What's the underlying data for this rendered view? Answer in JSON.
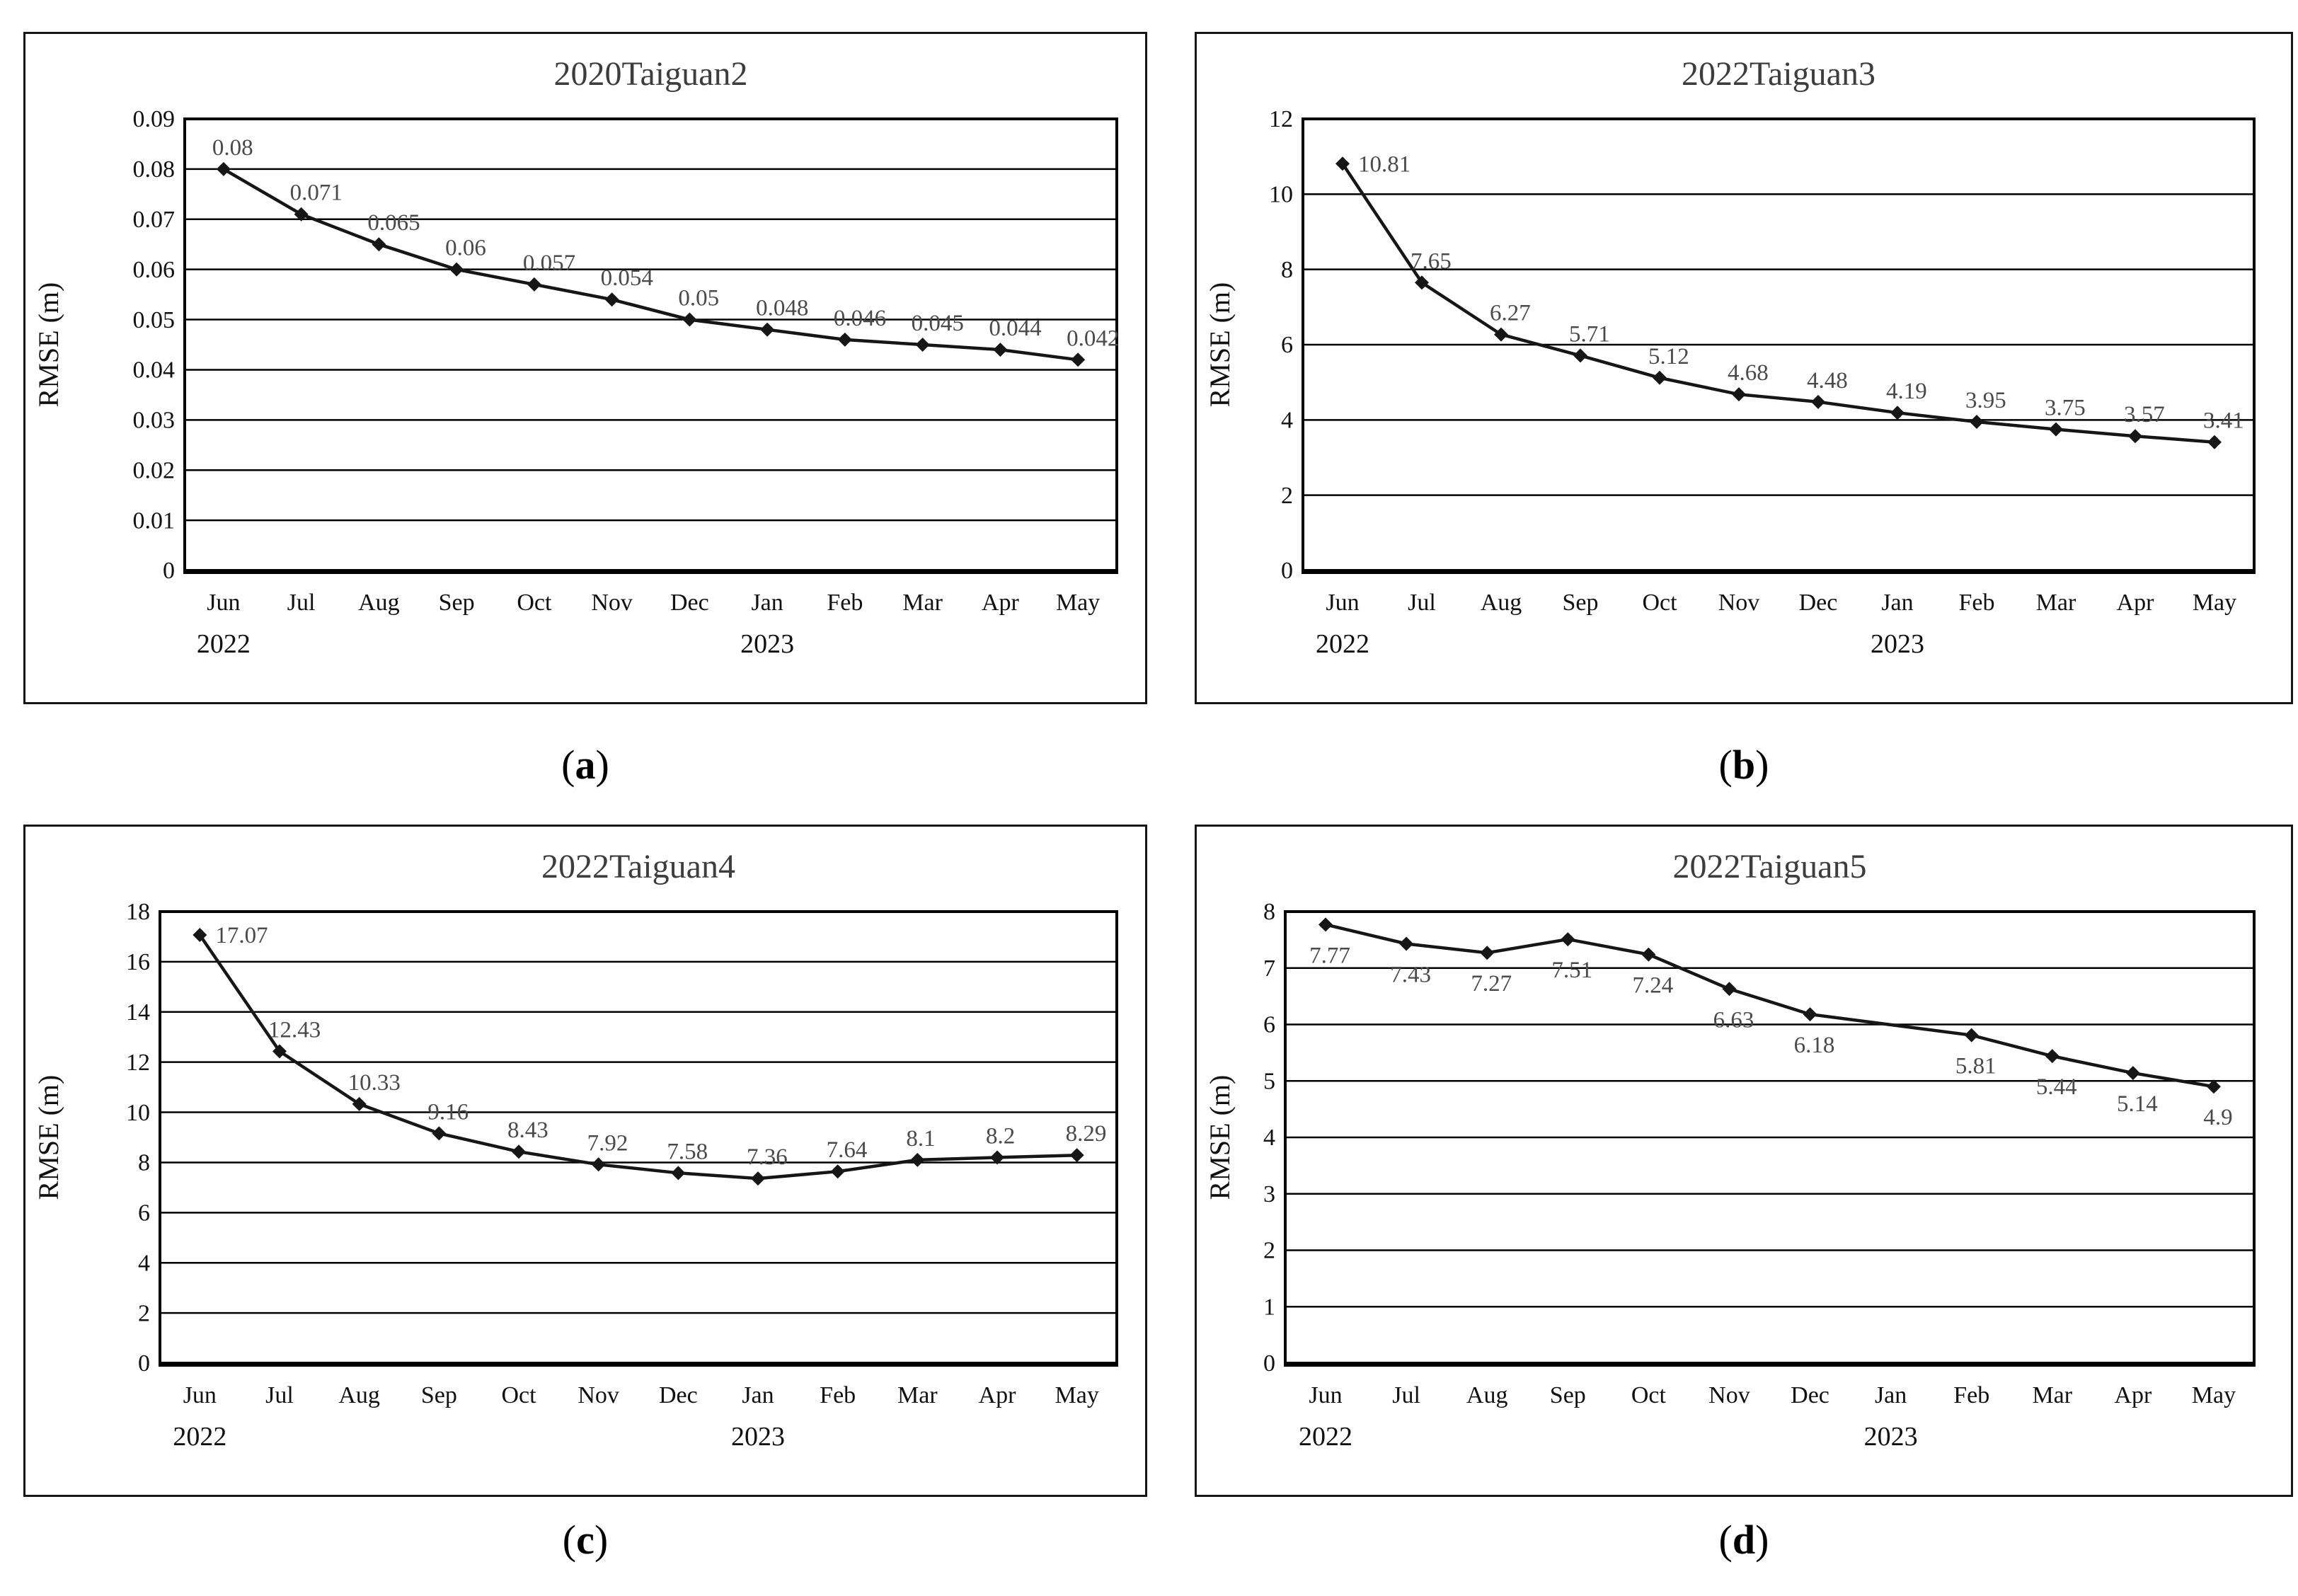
{
  "page": {
    "background": "#ffffff",
    "captions": [
      {
        "pre": "(",
        "label": "a",
        "post": ")"
      },
      {
        "pre": "(",
        "label": "b",
        "post": ")"
      },
      {
        "pre": "(",
        "label": "c",
        "post": ")"
      },
      {
        "pre": "(",
        "label": "d",
        "post": ")"
      }
    ]
  },
  "chart_data": [
    {
      "type": "line",
      "title": "2020Taiguan2",
      "xlabel": "",
      "ylabel": "RMSE (m)",
      "categories": [
        "Jun",
        "Jul",
        "Aug",
        "Sep",
        "Oct",
        "Nov",
        "Dec",
        "Jan",
        "Feb",
        "Mar",
        "Apr",
        "May"
      ],
      "x_year_labels": [
        {
          "text": "2022",
          "index": 0
        },
        {
          "text": "2023",
          "index": 7
        }
      ],
      "values": [
        0.08,
        0.071,
        0.065,
        0.06,
        0.057,
        0.054,
        0.05,
        0.048,
        0.046,
        0.045,
        0.044,
        0.042
      ],
      "point_labels": [
        "0.08",
        "0.071",
        "0.065",
        "0.06",
        "0.057",
        "0.054",
        "0.05",
        "0.048",
        "0.046",
        "0.045",
        "0.044",
        "0.042"
      ],
      "ylim": [
        0,
        0.09
      ],
      "ytick_step": 0.01,
      "grid": "horizontal",
      "legend": "none",
      "marker": "diamond",
      "line_color": "#161616",
      "title_color": "#3d3d3d",
      "label_color": "#4a4a4a",
      "label_position": "above",
      "first_label_position": "above"
    },
    {
      "type": "line",
      "title": "2022Taiguan3",
      "xlabel": "",
      "ylabel": "RMSE (m)",
      "categories": [
        "Jun",
        "Jul",
        "Aug",
        "Sep",
        "Oct",
        "Nov",
        "Dec",
        "Jan",
        "Feb",
        "Mar",
        "Apr",
        "May"
      ],
      "x_year_labels": [
        {
          "text": "2022",
          "index": 0
        },
        {
          "text": "2023",
          "index": 7
        }
      ],
      "values": [
        10.81,
        7.65,
        6.27,
        5.71,
        5.12,
        4.68,
        4.48,
        4.19,
        3.95,
        3.75,
        3.57,
        3.41
      ],
      "point_labels": [
        "10.81",
        "7.65",
        "6.27",
        "5.71",
        "5.12",
        "4.68",
        "4.48",
        "4.19",
        "3.95",
        "3.75",
        "3.57",
        "3.41"
      ],
      "ylim": [
        0,
        12
      ],
      "ytick_step": 2,
      "grid": "horizontal",
      "legend": "none",
      "marker": "diamond",
      "line_color": "#161616",
      "title_color": "#3d3d3d",
      "label_color": "#4a4a4a",
      "label_position": "above",
      "first_label_position": "right"
    },
    {
      "type": "line",
      "title": "2022Taiguan4",
      "xlabel": "",
      "ylabel": "RMSE (m)",
      "categories": [
        "Jun",
        "Jul",
        "Aug",
        "Sep",
        "Oct",
        "Nov",
        "Dec",
        "Jan",
        "Feb",
        "Mar",
        "Apr",
        "May"
      ],
      "x_year_labels": [
        {
          "text": "2022",
          "index": 0
        },
        {
          "text": "2023",
          "index": 7
        }
      ],
      "values": [
        17.07,
        12.43,
        10.33,
        9.16,
        8.43,
        7.92,
        7.58,
        7.36,
        7.64,
        8.1,
        8.2,
        8.29
      ],
      "point_labels": [
        "17.07",
        "12.43",
        "10.33",
        "9.16",
        "8.43",
        "7.92",
        "7.58",
        "7.36",
        "7.64",
        "8.1",
        "8.2",
        "8.29"
      ],
      "ylim": [
        0,
        18
      ],
      "ytick_step": 2,
      "grid": "horizontal",
      "legend": "none",
      "marker": "diamond",
      "line_color": "#161616",
      "title_color": "#3d3d3d",
      "label_color": "#4a4a4a",
      "label_position": "above",
      "first_label_position": "right"
    },
    {
      "type": "line",
      "title": "2022Taiguan5",
      "xlabel": "",
      "ylabel": "RMSE (m)",
      "categories": [
        "Jun",
        "Jul",
        "Aug",
        "Sep",
        "Oct",
        "Nov",
        "Dec",
        "Jan",
        "Feb",
        "Mar",
        "Apr",
        "May"
      ],
      "x_year_labels": [
        {
          "text": "2022",
          "index": 0
        },
        {
          "text": "2023",
          "index": 7
        }
      ],
      "values": [
        7.77,
        7.43,
        7.27,
        7.51,
        7.24,
        6.63,
        6.18,
        null,
        5.81,
        5.44,
        5.14,
        4.9
      ],
      "point_labels": [
        "7.77",
        "7.43",
        "7.27",
        "7.51",
        "7.24",
        "6.63",
        "6.18",
        "",
        "5.81",
        "5.44",
        "5.14",
        "4.9"
      ],
      "ylim": [
        0,
        8
      ],
      "ytick_step": 1,
      "grid": "horizontal",
      "legend": "none",
      "marker": "diamond",
      "line_color": "#161616",
      "title_color": "#3d3d3d",
      "label_color": "#4a4a4a",
      "label_position": "below",
      "first_label_position": "below"
    }
  ]
}
